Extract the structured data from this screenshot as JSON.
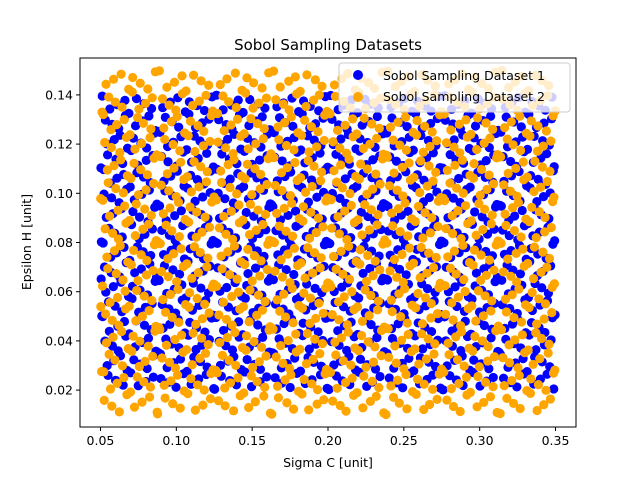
{
  "chart_data": {
    "type": "scatter",
    "title": "Sobol Sampling Datasets",
    "xlabel": "Sigma C [unit]",
    "ylabel": "Epsilon H [unit]",
    "xlim": [
      0.0365,
      0.3635
    ],
    "ylim": [
      0.005,
      0.155
    ],
    "xticks": [
      0.05,
      0.1,
      0.15,
      0.2,
      0.25,
      0.3,
      0.35
    ],
    "xtick_labels": [
      "0.05",
      "0.10",
      "0.15",
      "0.20",
      "0.25",
      "0.30",
      "0.35"
    ],
    "yticks": [
      0.02,
      0.04,
      0.06,
      0.08,
      0.1,
      0.12,
      0.14
    ],
    "ytick_labels": [
      "0.02",
      "0.04",
      "0.06",
      "0.08",
      "0.10",
      "0.12",
      "0.14"
    ],
    "grid": false,
    "legend_position": "top-right",
    "series": [
      {
        "name": "Sobol Sampling Dataset 1",
        "color": "#0000ff",
        "x_range": [
          0.05,
          0.35
        ],
        "y_range": [
          0.02,
          0.14
        ],
        "n_points": 1024
      },
      {
        "name": "Sobol Sampling Dataset 2",
        "color": "#ffa500",
        "x_range": [
          0.05,
          0.35
        ],
        "y_range": [
          0.01,
          0.15
        ],
        "n_points": 1024
      }
    ]
  }
}
